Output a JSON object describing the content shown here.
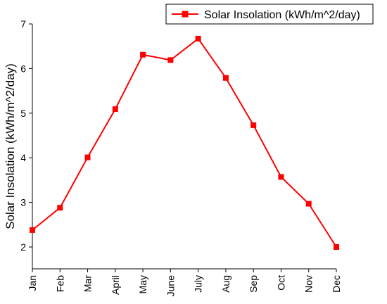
{
  "chart_data": {
    "type": "line",
    "categories": [
      "Jan",
      "Feb",
      "Mar",
      "April",
      "May",
      "June",
      "July",
      "Aug",
      "Sep",
      "Oct",
      "Nov",
      "Dec"
    ],
    "series": [
      {
        "name": "Solar Insolation (kWh/m^2/day)",
        "values": [
          2.38,
          2.88,
          4.01,
          5.09,
          6.31,
          6.19,
          6.67,
          5.79,
          4.73,
          3.57,
          2.97,
          2.0
        ],
        "color": "#ff0000",
        "marker": "square"
      }
    ],
    "xlabel": "",
    "ylabel": "Solar Insolation (kWh/m^2/day)",
    "ylim": [
      1.5,
      7.0
    ],
    "yticks": [
      2,
      3,
      4,
      5,
      6,
      7
    ],
    "grid": false,
    "legend_position": "top-right"
  }
}
